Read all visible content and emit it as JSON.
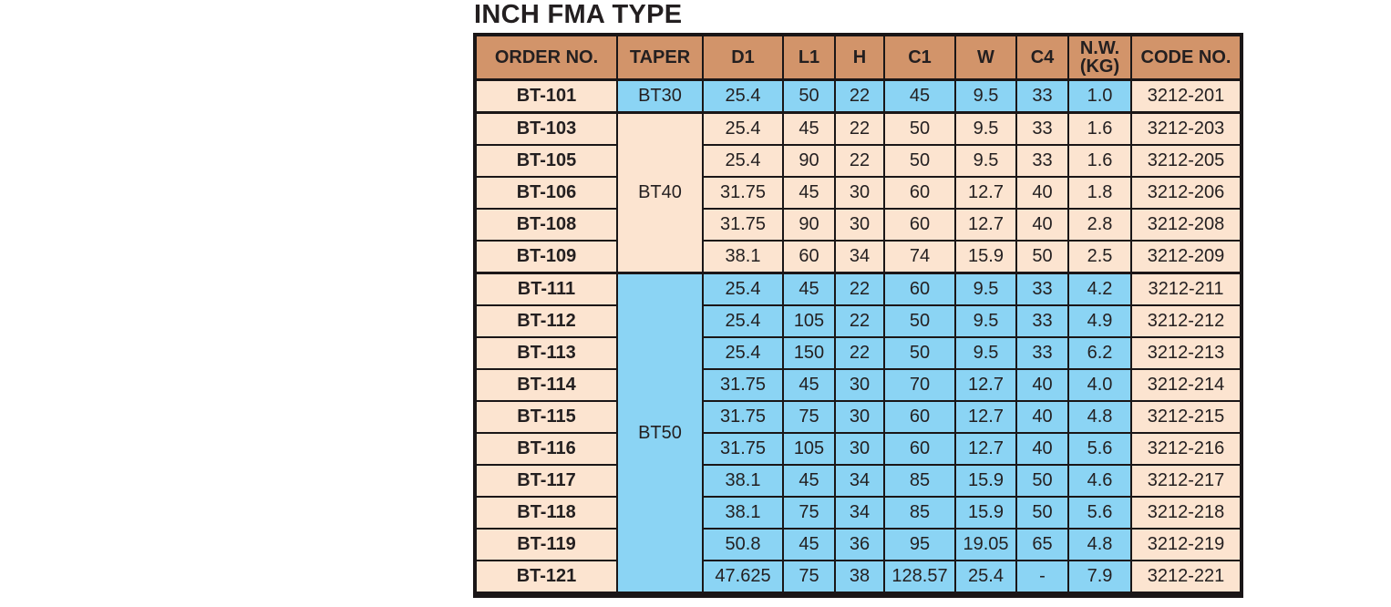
{
  "page": {
    "title": "INCH FMA TYPE"
  },
  "colors": {
    "header_bg": "#D2946A",
    "blue": "#8BD4F4",
    "peach": "#FCE4D0",
    "border": "#1A1617",
    "text": "#231F20"
  },
  "table": {
    "headers": [
      {
        "label": "ORDER NO."
      },
      {
        "label": "TAPER"
      },
      {
        "label": "D1"
      },
      {
        "label": "L1"
      },
      {
        "label": "H"
      },
      {
        "label": "C1"
      },
      {
        "label": "W"
      },
      {
        "label": "C4"
      },
      {
        "label": "N.W.\n(KG)"
      },
      {
        "label": "CODE NO."
      }
    ],
    "taper_groups": [
      {
        "taper": "BT30",
        "rows": 1,
        "band": "blue"
      },
      {
        "taper": "BT40",
        "rows": 5,
        "band": "peach"
      },
      {
        "taper": "BT50",
        "rows": 10,
        "band": "blue"
      }
    ],
    "rows": [
      {
        "order": "BT-101",
        "section": 0,
        "d1": "25.4",
        "l1": "50",
        "h": "22",
        "c1": "45",
        "w": "9.5",
        "c4": "33",
        "nw": "1.0",
        "code": "3212-201"
      },
      {
        "order": "BT-103",
        "section": 1,
        "d1": "25.4",
        "l1": "45",
        "h": "22",
        "c1": "50",
        "w": "9.5",
        "c4": "33",
        "nw": "1.6",
        "code": "3212-203"
      },
      {
        "order": "BT-105",
        "section": 1,
        "d1": "25.4",
        "l1": "90",
        "h": "22",
        "c1": "50",
        "w": "9.5",
        "c4": "33",
        "nw": "1.6",
        "code": "3212-205"
      },
      {
        "order": "BT-106",
        "section": 1,
        "d1": "31.75",
        "l1": "45",
        "h": "30",
        "c1": "60",
        "w": "12.7",
        "c4": "40",
        "nw": "1.8",
        "code": "3212-206"
      },
      {
        "order": "BT-108",
        "section": 1,
        "d1": "31.75",
        "l1": "90",
        "h": "30",
        "c1": "60",
        "w": "12.7",
        "c4": "40",
        "nw": "2.8",
        "code": "3212-208"
      },
      {
        "order": "BT-109",
        "section": 1,
        "d1": "38.1",
        "l1": "60",
        "h": "34",
        "c1": "74",
        "w": "15.9",
        "c4": "50",
        "nw": "2.5",
        "code": "3212-209"
      },
      {
        "order": "BT-111",
        "section": 2,
        "d1": "25.4",
        "l1": "45",
        "h": "22",
        "c1": "60",
        "w": "9.5",
        "c4": "33",
        "nw": "4.2",
        "code": "3212-211"
      },
      {
        "order": "BT-112",
        "section": 2,
        "d1": "25.4",
        "l1": "105",
        "h": "22",
        "c1": "50",
        "w": "9.5",
        "c4": "33",
        "nw": "4.9",
        "code": "3212-212"
      },
      {
        "order": "BT-113",
        "section": 2,
        "d1": "25.4",
        "l1": "150",
        "h": "22",
        "c1": "50",
        "w": "9.5",
        "c4": "33",
        "nw": "6.2",
        "code": "3212-213"
      },
      {
        "order": "BT-114",
        "section": 2,
        "d1": "31.75",
        "l1": "45",
        "h": "30",
        "c1": "70",
        "w": "12.7",
        "c4": "40",
        "nw": "4.0",
        "code": "3212-214"
      },
      {
        "order": "BT-115",
        "section": 2,
        "d1": "31.75",
        "l1": "75",
        "h": "30",
        "c1": "60",
        "w": "12.7",
        "c4": "40",
        "nw": "4.8",
        "code": "3212-215"
      },
      {
        "order": "BT-116",
        "section": 2,
        "d1": "31.75",
        "l1": "105",
        "h": "30",
        "c1": "60",
        "w": "12.7",
        "c4": "40",
        "nw": "5.6",
        "code": "3212-216"
      },
      {
        "order": "BT-117",
        "section": 2,
        "d1": "38.1",
        "l1": "45",
        "h": "34",
        "c1": "85",
        "w": "15.9",
        "c4": "50",
        "nw": "4.6",
        "code": "3212-217"
      },
      {
        "order": "BT-118",
        "section": 2,
        "d1": "38.1",
        "l1": "75",
        "h": "34",
        "c1": "85",
        "w": "15.9",
        "c4": "50",
        "nw": "5.6",
        "code": "3212-218"
      },
      {
        "order": "BT-119",
        "section": 2,
        "d1": "50.8",
        "l1": "45",
        "h": "36",
        "c1": "95",
        "w": "19.05",
        "c4": "65",
        "nw": "4.8",
        "code": "3212-219"
      },
      {
        "order": "BT-121",
        "section": 2,
        "d1": "47.625",
        "l1": "75",
        "h": "38",
        "c1": "128.57",
        "w": "25.4",
        "c4": "-",
        "nw": "7.9",
        "code": "3212-221"
      }
    ]
  }
}
